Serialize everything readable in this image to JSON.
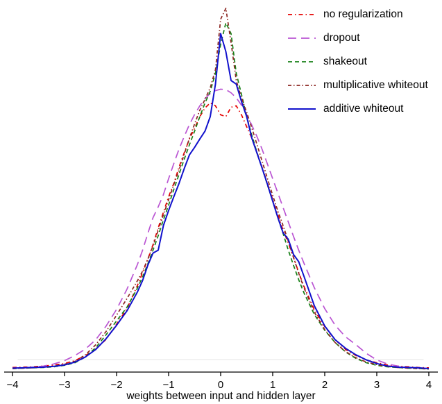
{
  "chart_data": {
    "type": "line",
    "title": "",
    "xlabel": "weights between input and hidden layer",
    "ylabel": "",
    "xlim": [
      -4.15,
      4.15
    ],
    "ylim": [
      0,
      1.05
    ],
    "grid": false,
    "legend_position": "top-right",
    "axis_color": "#000000",
    "baseline_color": "#e6e6e6",
    "x_ticks": [
      -4,
      -3,
      -2,
      -1,
      0,
      1,
      2,
      3,
      4
    ],
    "x_tick_labels": [
      "−4",
      "−3",
      "−2",
      "−1",
      "0",
      "1",
      "2",
      "3",
      "4"
    ],
    "x": [
      -4,
      -3.8,
      -3.6,
      -3.4,
      -3.2,
      -3,
      -2.8,
      -2.6,
      -2.4,
      -2.2,
      -2,
      -1.8,
      -1.6,
      -1.5,
      -1.4,
      -1.3,
      -1.2,
      -1.1,
      -1,
      -0.9,
      -0.8,
      -0.7,
      -0.6,
      -0.5,
      -0.4,
      -0.3,
      -0.2,
      -0.1,
      0,
      0.1,
      0.2,
      0.3,
      0.4,
      0.5,
      0.6,
      0.7,
      0.8,
      0.9,
      1,
      1.1,
      1.2,
      1.3,
      1.4,
      1.5,
      1.6,
      1.8,
      2,
      2.2,
      2.4,
      2.6,
      2.8,
      3,
      3.2,
      3.4,
      3.6,
      3.8,
      4
    ],
    "series": [
      {
        "name": "no regularization",
        "color": "#e50000",
        "dash": "6 4 1.5 4",
        "width": 1.7,
        "values": [
          0.005,
          0.006,
          0.007,
          0.009,
          0.012,
          0.016,
          0.024,
          0.038,
          0.056,
          0.083,
          0.125,
          0.168,
          0.232,
          0.268,
          0.305,
          0.345,
          0.392,
          0.435,
          0.478,
          0.515,
          0.56,
          0.6,
          0.638,
          0.668,
          0.7,
          0.724,
          0.738,
          0.73,
          0.705,
          0.7,
          0.726,
          0.73,
          0.705,
          0.672,
          0.64,
          0.6,
          0.558,
          0.515,
          0.47,
          0.428,
          0.385,
          0.35,
          0.31,
          0.268,
          0.23,
          0.165,
          0.118,
          0.082,
          0.055,
          0.038,
          0.026,
          0.018,
          0.012,
          0.009,
          0.007,
          0.005,
          0.004
        ]
      },
      {
        "name": "dropout",
        "color": "#ba55d3",
        "dash": "12 7",
        "width": 1.7,
        "values": [
          0.003,
          0.004,
          0.006,
          0.009,
          0.015,
          0.024,
          0.038,
          0.056,
          0.082,
          0.12,
          0.166,
          0.222,
          0.29,
          0.33,
          0.376,
          0.42,
          0.45,
          0.484,
          0.528,
          0.57,
          0.61,
          0.645,
          0.678,
          0.706,
          0.73,
          0.75,
          0.764,
          0.772,
          0.776,
          0.775,
          0.766,
          0.752,
          0.732,
          0.706,
          0.676,
          0.644,
          0.608,
          0.568,
          0.528,
          0.488,
          0.448,
          0.408,
          0.368,
          0.33,
          0.294,
          0.226,
          0.168,
          0.122,
          0.09,
          0.068,
          0.044,
          0.026,
          0.015,
          0.009,
          0.005,
          0.003,
          0.002
        ]
      },
      {
        "name": "shakeout",
        "color": "#178017",
        "dash": "6 4",
        "width": 1.7,
        "values": [
          0.002,
          0.003,
          0.004,
          0.005,
          0.007,
          0.011,
          0.018,
          0.034,
          0.06,
          0.096,
          0.134,
          0.172,
          0.225,
          0.256,
          0.292,
          0.33,
          0.37,
          0.414,
          0.455,
          0.498,
          0.54,
          0.582,
          0.622,
          0.66,
          0.7,
          0.738,
          0.77,
          0.82,
          0.9,
          0.96,
          0.93,
          0.82,
          0.762,
          0.7,
          0.648,
          0.6,
          0.556,
          0.51,
          0.466,
          0.42,
          0.376,
          0.33,
          0.288,
          0.248,
          0.212,
          0.152,
          0.108,
          0.074,
          0.048,
          0.03,
          0.018,
          0.011,
          0.007,
          0.005,
          0.003,
          0.002,
          0.001
        ]
      },
      {
        "name": "multiplicative whiteout",
        "color": "#8b2621",
        "dash": "5 3 1.5 3",
        "width": 1.7,
        "values": [
          0.002,
          0.003,
          0.004,
          0.006,
          0.009,
          0.014,
          0.022,
          0.04,
          0.068,
          0.105,
          0.15,
          0.196,
          0.245,
          0.272,
          0.305,
          0.342,
          0.385,
          0.428,
          0.47,
          0.512,
          0.552,
          0.596,
          0.64,
          0.68,
          0.718,
          0.748,
          0.78,
          0.83,
          0.97,
          1.0,
          0.905,
          0.8,
          0.752,
          0.712,
          0.668,
          0.622,
          0.575,
          0.528,
          0.482,
          0.438,
          0.398,
          0.355,
          0.31,
          0.266,
          0.226,
          0.158,
          0.11,
          0.074,
          0.049,
          0.032,
          0.02,
          0.013,
          0.008,
          0.005,
          0.003,
          0.002,
          0.001
        ]
      },
      {
        "name": "additive whiteout",
        "color": "#1111cc",
        "dash": "",
        "width": 2,
        "values": [
          0.003,
          0.004,
          0.005,
          0.006,
          0.008,
          0.012,
          0.02,
          0.034,
          0.055,
          0.085,
          0.122,
          0.162,
          0.214,
          0.246,
          0.288,
          0.322,
          0.33,
          0.398,
          0.44,
          0.478,
          0.515,
          0.556,
          0.594,
          0.615,
          0.638,
          0.66,
          0.7,
          0.79,
          0.93,
          0.88,
          0.8,
          0.79,
          0.742,
          0.7,
          0.64,
          0.598,
          0.556,
          0.512,
          0.466,
          0.42,
          0.378,
          0.36,
          0.318,
          0.298,
          0.258,
          0.176,
          0.12,
          0.082,
          0.058,
          0.04,
          0.026,
          0.016,
          0.009,
          0.006,
          0.005,
          0.004,
          0.002
        ]
      }
    ]
  }
}
